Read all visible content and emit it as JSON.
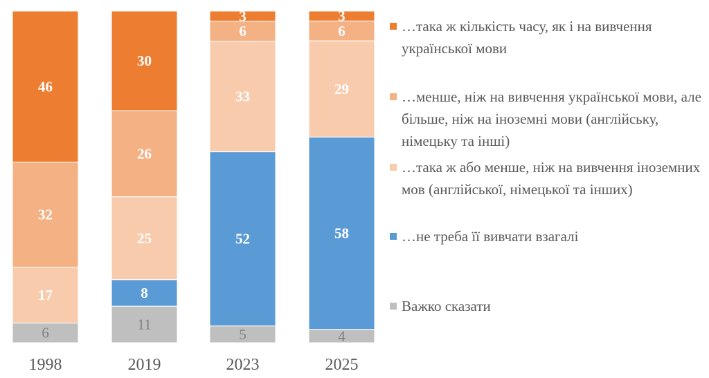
{
  "chart_data": {
    "type": "bar",
    "stacked": "100%",
    "categories": [
      "1998",
      "2019",
      "2023",
      "2025"
    ],
    "series": [
      {
        "name": "…така ж кількість часу, як і на вивчення української мови",
        "color": "#ED7D31",
        "values": [
          46,
          30,
          3,
          3
        ]
      },
      {
        "name": "…менше, ніж на вивчення української мови, але більше, ніж на іноземні мови (англійську, німецьку та інші)",
        "color": "#F4B183",
        "values": [
          32,
          26,
          6,
          6
        ]
      },
      {
        "name": "…така ж або менше, ніж на вивчення іноземних мов (англійської, німецької та інших)",
        "color": "#F8CBAD",
        "values": [
          17,
          25,
          33,
          29
        ]
      },
      {
        "name": "…не треба її вивчати взагалі",
        "color": "#5B9BD5",
        "values": [
          null,
          8,
          52,
          58
        ]
      },
      {
        "name": "Важко сказати",
        "color": "#BFBFBF",
        "values": [
          6,
          11,
          5,
          4
        ]
      }
    ],
    "legend_position": "right",
    "grid": false,
    "data_labels": true
  }
}
